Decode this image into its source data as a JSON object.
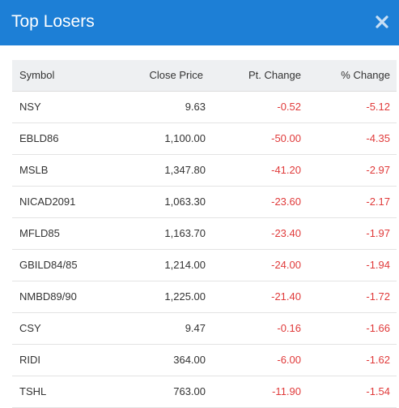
{
  "dialog": {
    "title": "Top Losers",
    "close_icon": "close-icon"
  },
  "colors": {
    "header_bg": "#1d7fd6",
    "negative": "#e03a3a"
  },
  "table": {
    "headers": [
      "Symbol",
      "Close Price",
      "Pt. Change",
      "% Change"
    ],
    "rows": [
      {
        "symbol": "NSY",
        "close": "9.63",
        "pt_change": "-0.52",
        "pct_change": "-5.12"
      },
      {
        "symbol": "EBLD86",
        "close": "1,100.00",
        "pt_change": "-50.00",
        "pct_change": "-4.35"
      },
      {
        "symbol": "MSLB",
        "close": "1,347.80",
        "pt_change": "-41.20",
        "pct_change": "-2.97"
      },
      {
        "symbol": "NICAD2091",
        "close": "1,063.30",
        "pt_change": "-23.60",
        "pct_change": "-2.17"
      },
      {
        "symbol": "MFLD85",
        "close": "1,163.70",
        "pt_change": "-23.40",
        "pct_change": "-1.97"
      },
      {
        "symbol": "GBILD84/85",
        "close": "1,214.00",
        "pt_change": "-24.00",
        "pct_change": "-1.94"
      },
      {
        "symbol": "NMBD89/90",
        "close": "1,225.00",
        "pt_change": "-21.40",
        "pct_change": "-1.72"
      },
      {
        "symbol": "CSY",
        "close": "9.47",
        "pt_change": "-0.16",
        "pct_change": "-1.66"
      },
      {
        "symbol": "RIDI",
        "close": "364.00",
        "pt_change": "-6.00",
        "pct_change": "-1.62"
      },
      {
        "symbol": "TSHL",
        "close": "763.00",
        "pt_change": "-11.90",
        "pct_change": "-1.54"
      }
    ]
  }
}
